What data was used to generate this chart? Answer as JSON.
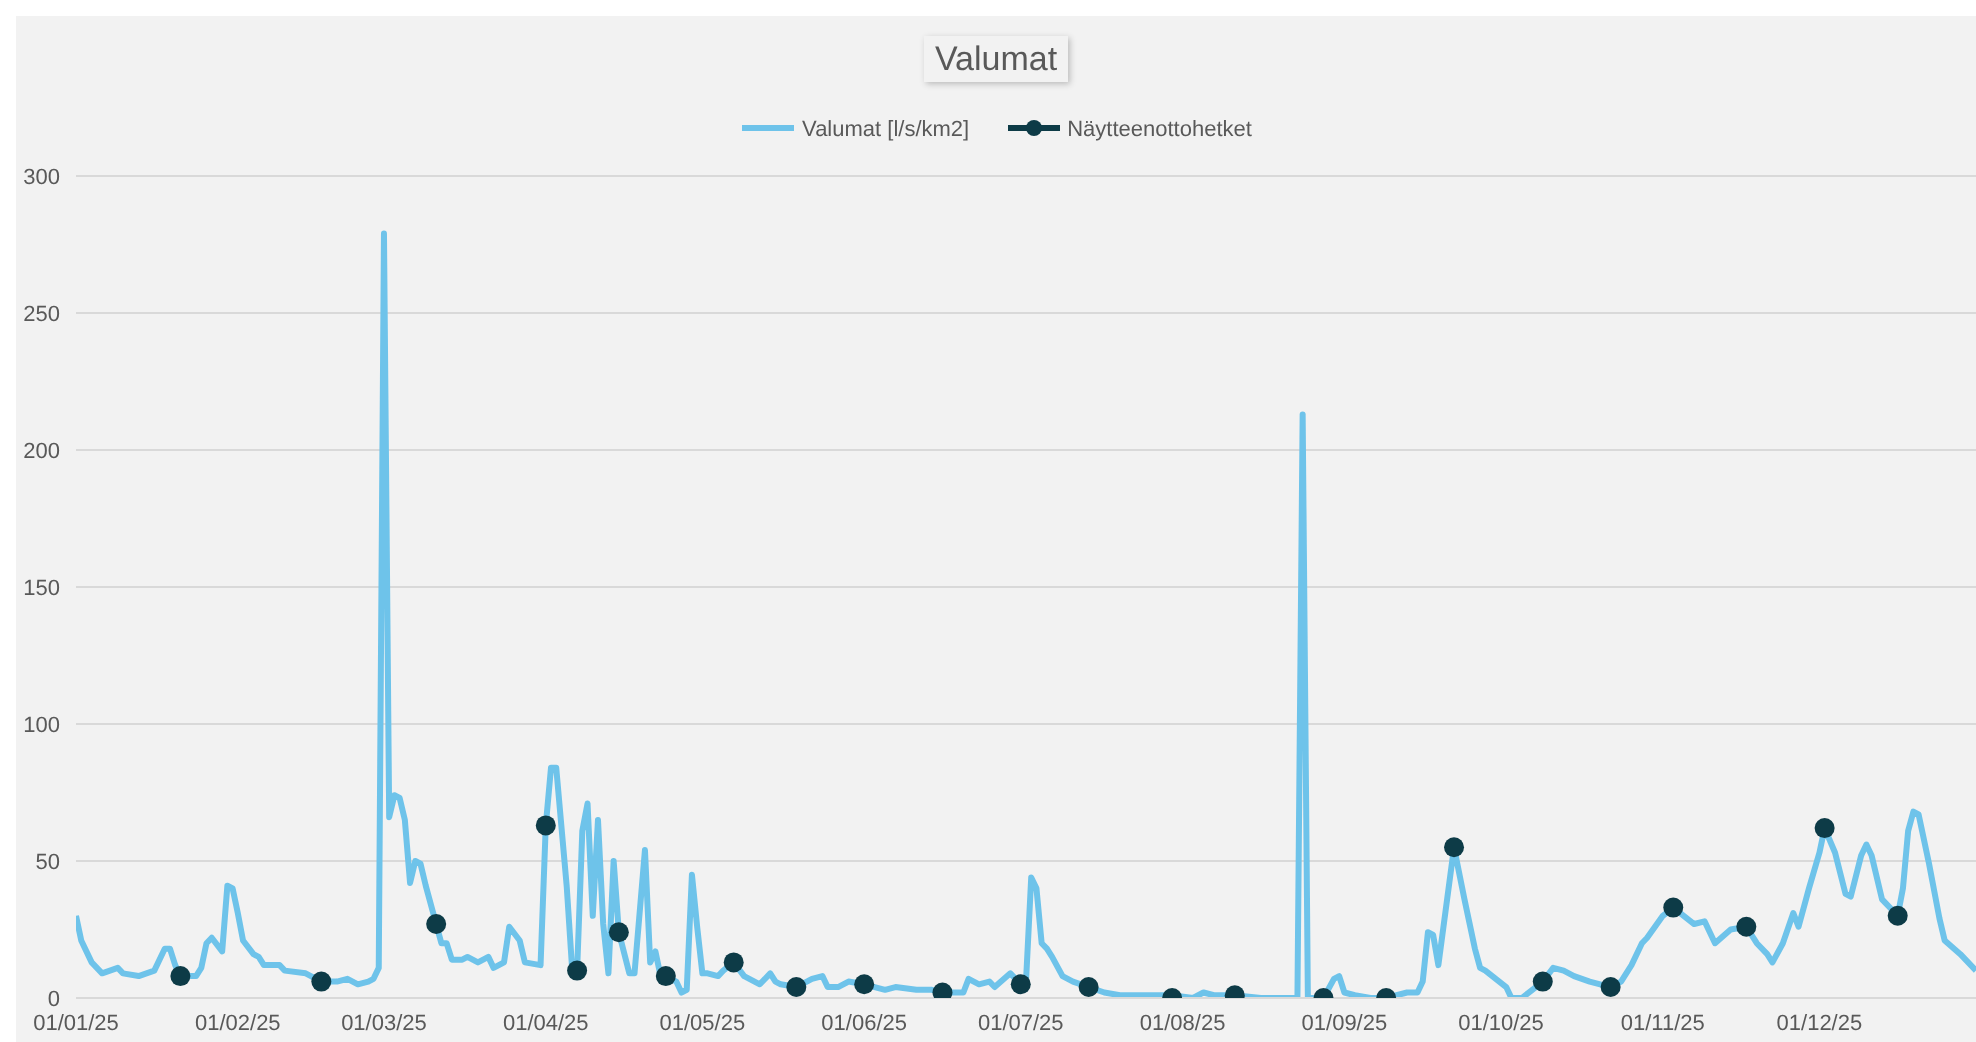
{
  "chart_data": {
    "type": "line",
    "title": "Valumat",
    "xlim": [
      "2025-01-01",
      "2025-12-31"
    ],
    "xticks": [
      {
        "value": "2025-01-01",
        "label": "01/01/25"
      },
      {
        "value": "2025-02-01",
        "label": "01/02/25"
      },
      {
        "value": "2025-03-01",
        "label": "01/03/25"
      },
      {
        "value": "2025-04-01",
        "label": "01/04/25"
      },
      {
        "value": "2025-05-01",
        "label": "01/05/25"
      },
      {
        "value": "2025-06-01",
        "label": "01/06/25"
      },
      {
        "value": "2025-07-01",
        "label": "01/07/25"
      },
      {
        "value": "2025-08-01",
        "label": "01/08/25"
      },
      {
        "value": "2025-09-01",
        "label": "01/09/25"
      },
      {
        "value": "2025-10-01",
        "label": "01/10/25"
      },
      {
        "value": "2025-11-01",
        "label": "01/11/25"
      },
      {
        "value": "2025-12-01",
        "label": "01/12/25"
      }
    ],
    "ylim": [
      0,
      300
    ],
    "yticks": [
      0,
      50,
      100,
      150,
      200,
      250,
      300
    ],
    "grid": "y",
    "legend": "top",
    "series": [
      {
        "name": "Valumat [l/s/km2]",
        "color": "#6ec3ea",
        "marker": "none",
        "x": [
          "2025-01-01",
          "2025-01-02",
          "2025-01-04",
          "2025-01-06",
          "2025-01-09",
          "2025-01-10",
          "2025-01-13",
          "2025-01-16",
          "2025-01-18",
          "2025-01-19",
          "2025-01-20",
          "2025-01-21",
          "2025-01-24",
          "2025-01-25",
          "2025-01-26",
          "2025-01-27",
          "2025-01-29",
          "2025-01-30",
          "2025-01-31",
          "2025-02-01",
          "2025-02-02",
          "2025-02-04",
          "2025-02-05",
          "2025-02-06",
          "2025-02-09",
          "2025-02-10",
          "2025-02-14",
          "2025-02-17",
          "2025-02-20",
          "2025-02-22",
          "2025-02-24",
          "2025-02-26",
          "2025-02-27",
          "2025-02-28",
          "2025-03-01",
          "2025-03-02",
          "2025-03-03",
          "2025-03-04",
          "2025-03-05",
          "2025-03-06",
          "2025-03-07",
          "2025-03-08",
          "2025-03-09",
          "2025-03-11",
          "2025-03-12",
          "2025-03-13",
          "2025-03-14",
          "2025-03-16",
          "2025-03-17",
          "2025-03-19",
          "2025-03-21",
          "2025-03-22",
          "2025-03-24",
          "2025-03-25",
          "2025-03-27",
          "2025-03-28",
          "2025-03-31",
          "2025-04-01",
          "2025-04-02",
          "2025-04-03",
          "2025-04-05",
          "2025-04-06",
          "2025-04-07",
          "2025-04-08",
          "2025-04-09",
          "2025-04-10",
          "2025-04-11",
          "2025-04-12",
          "2025-04-13",
          "2025-04-14",
          "2025-04-15",
          "2025-04-17",
          "2025-04-18",
          "2025-04-20",
          "2025-04-21",
          "2025-04-22",
          "2025-04-23",
          "2025-04-24",
          "2025-04-26",
          "2025-04-27",
          "2025-04-28",
          "2025-04-29",
          "2025-04-30",
          "2025-05-01",
          "2025-05-02",
          "2025-05-04",
          "2025-05-05",
          "2025-05-07",
          "2025-05-09",
          "2025-05-11",
          "2025-05-12",
          "2025-05-14",
          "2025-05-15",
          "2025-05-16",
          "2025-05-19",
          "2025-05-21",
          "2025-05-22",
          "2025-05-24",
          "2025-05-25",
          "2025-05-27",
          "2025-05-29",
          "2025-06-01",
          "2025-06-05",
          "2025-06-07",
          "2025-06-11",
          "2025-06-14",
          "2025-06-16",
          "2025-06-20",
          "2025-06-21",
          "2025-06-23",
          "2025-06-25",
          "2025-06-26",
          "2025-06-29",
          "2025-07-01",
          "2025-07-02",
          "2025-07-03",
          "2025-07-04",
          "2025-07-05",
          "2025-07-06",
          "2025-07-07",
          "2025-07-09",
          "2025-07-11",
          "2025-07-14",
          "2025-07-17",
          "2025-07-20",
          "2025-07-24",
          "2025-07-30",
          "2025-08-03",
          "2025-08-05",
          "2025-08-07",
          "2025-08-11",
          "2025-08-16",
          "2025-08-23",
          "2025-08-24",
          "2025-08-25",
          "2025-08-28",
          "2025-08-30",
          "2025-08-31",
          "2025-09-01",
          "2025-09-03",
          "2025-09-06",
          "2025-09-09",
          "2025-09-11",
          "2025-09-13",
          "2025-09-15",
          "2025-09-16",
          "2025-09-17",
          "2025-09-18",
          "2025-09-19",
          "2025-09-22",
          "2025-09-24",
          "2025-09-26",
          "2025-09-27",
          "2025-09-28",
          "2025-09-30",
          "2025-10-02",
          "2025-10-03",
          "2025-10-05",
          "2025-10-07",
          "2025-10-09",
          "2025-10-11",
          "2025-10-13",
          "2025-10-15",
          "2025-10-18",
          "2025-10-22",
          "2025-10-24",
          "2025-10-26",
          "2025-10-28",
          "2025-10-29",
          "2025-11-01",
          "2025-11-03",
          "2025-11-05",
          "2025-11-07",
          "2025-11-09",
          "2025-11-11",
          "2025-11-14",
          "2025-11-17",
          "2025-11-19",
          "2025-11-21",
          "2025-11-22",
          "2025-11-24",
          "2025-11-26",
          "2025-11-27",
          "2025-11-29",
          "2025-12-01",
          "2025-12-02",
          "2025-12-04",
          "2025-12-06",
          "2025-12-07",
          "2025-12-09",
          "2025-12-10",
          "2025-12-11",
          "2025-12-13",
          "2025-12-16",
          "2025-12-17",
          "2025-12-18",
          "2025-12-19",
          "2025-12-20",
          "2025-12-22",
          "2025-12-24",
          "2025-12-25",
          "2025-12-28",
          "2025-12-31"
        ],
        "values": [
          30,
          21,
          13,
          9,
          11,
          9,
          8,
          10,
          18,
          18,
          12,
          8,
          8,
          11,
          20,
          22,
          17,
          41,
          40,
          31,
          21,
          16,
          15,
          12,
          12,
          10,
          9,
          6,
          6,
          7,
          5,
          6,
          7,
          11,
          279,
          66,
          74,
          73,
          65,
          42,
          50,
          49,
          41,
          27,
          20,
          20,
          14,
          14,
          15,
          13,
          15,
          11,
          13,
          26,
          21,
          13,
          12,
          63,
          84,
          84,
          41,
          12,
          10,
          61,
          71,
          30,
          65,
          27,
          9,
          50,
          24,
          9,
          9,
          54,
          13,
          17,
          8,
          8,
          6,
          2,
          3,
          45,
          26,
          9,
          9,
          8,
          10,
          13,
          8,
          6,
          5,
          9,
          6,
          5,
          4,
          6,
          7,
          8,
          4,
          4,
          6,
          5,
          3,
          4,
          3,
          3,
          2,
          2,
          7,
          5,
          6,
          4,
          9,
          5,
          6,
          44,
          40,
          20,
          18,
          15,
          8,
          6,
          4,
          2,
          1,
          1,
          1,
          0,
          2,
          1,
          1,
          0,
          0,
          213,
          0,
          0,
          7,
          8,
          2,
          1,
          0,
          0,
          1,
          2,
          2,
          6,
          24,
          23,
          12,
          55,
          36,
          18,
          11,
          10,
          7,
          4,
          0,
          0,
          3,
          6,
          11,
          10,
          8,
          6,
          4,
          6,
          12,
          20,
          22,
          30,
          33,
          30,
          27,
          28,
          20,
          25,
          26,
          20,
          16,
          13,
          20,
          31,
          26,
          40,
          53,
          62,
          53,
          38,
          37,
          52,
          56,
          52,
          36,
          30,
          40,
          61,
          68,
          67,
          49,
          29,
          21,
          16,
          10
        ]
      },
      {
        "name": "Näytteenottohetket",
        "type": "scatter",
        "color": "#0d3b47",
        "marker": "circle",
        "x": [
          "2025-01-21",
          "2025-02-17",
          "2025-03-11",
          "2025-04-01",
          "2025-04-07",
          "2025-04-15",
          "2025-04-24",
          "2025-05-07",
          "2025-05-19",
          "2025-06-01",
          "2025-06-16",
          "2025-07-01",
          "2025-07-14",
          "2025-07-30",
          "2025-08-11",
          "2025-08-28",
          "2025-09-09",
          "2025-09-22",
          "2025-10-09",
          "2025-10-22",
          "2025-11-03",
          "2025-11-17",
          "2025-12-02",
          "2025-12-16"
        ],
        "values": [
          8,
          6,
          27,
          63,
          10,
          24,
          8,
          13,
          4,
          5,
          2,
          5,
          4,
          0,
          1,
          0,
          0,
          55,
          6,
          4,
          33,
          26,
          62,
          30
        ]
      }
    ]
  }
}
